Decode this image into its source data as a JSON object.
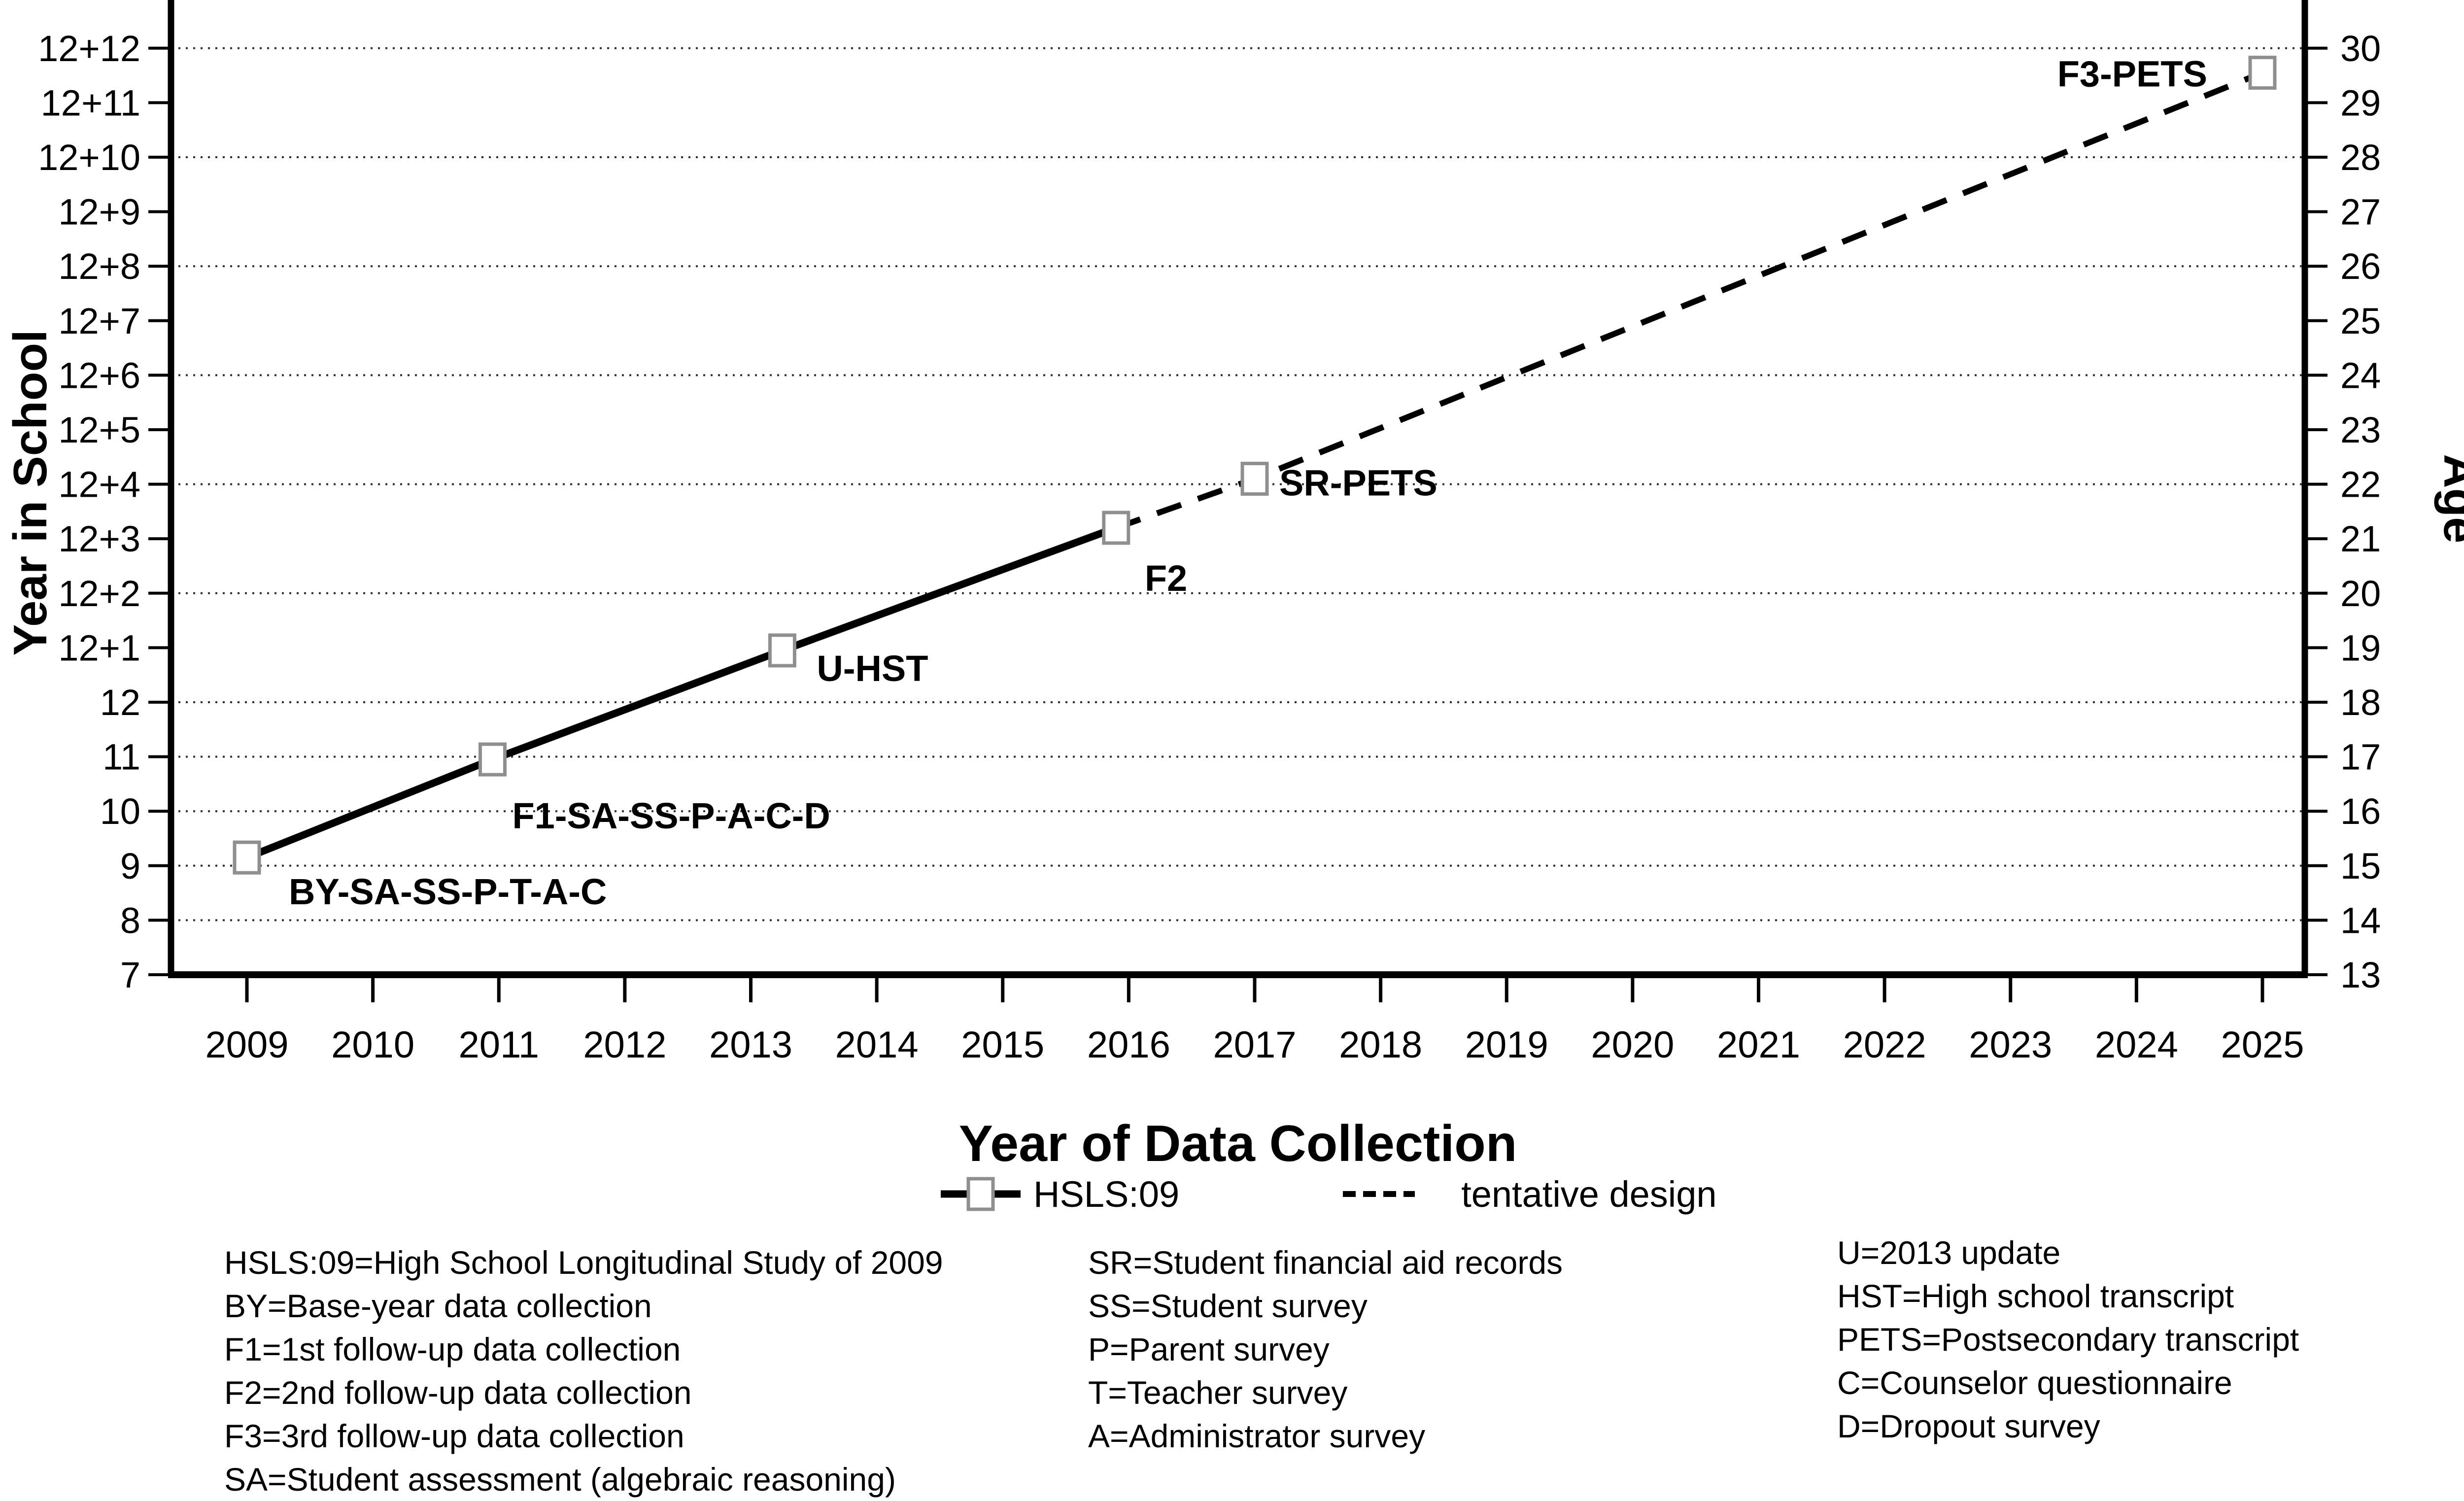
{
  "figure": {
    "background": "#ffffff",
    "text_color": "#000000",
    "marker_stroke_color": "#8f8f8f",
    "legend": {
      "hsls09": "HSLS:09",
      "tentative": "tentative design"
    },
    "footnotes": {
      "col1": [
        "HSLS:09=High School Longitudinal Study of 2009",
        "BY=Base-year data collection",
        "F1=1st follow-up data collection",
        "F2=2nd follow-up data collection",
        "F3=3rd follow-up data collection",
        "SA=Student assessment (algebraic reasoning)"
      ],
      "col2": [
        "SR=Student financial aid records",
        "SS=Student survey",
        "P=Parent survey",
        "T=Teacher survey",
        "A=Administrator survey"
      ],
      "col3": [
        "U=2013 update",
        "HST=High school transcript",
        "PETS=Postsecondary transcript",
        "C=Counselor questionnaire",
        "D=Dropout survey"
      ]
    }
  },
  "chart_data": {
    "type": "line",
    "title": "",
    "xlabel": "Year of Data Collection",
    "ylabel_left": "Year in School",
    "ylabel_right": "Age",
    "x_ticks": [
      2009,
      2010,
      2011,
      2012,
      2013,
      2014,
      2015,
      2016,
      2017,
      2018,
      2019,
      2020,
      2021,
      2022,
      2023,
      2024,
      2025
    ],
    "x_range": [
      2008.4,
      2025.35
    ],
    "y_left_tick_labels": [
      "7",
      "8",
      "9",
      "10",
      "11",
      "12",
      "12+1",
      "12+2",
      "12+3",
      "12+4",
      "12+5",
      "12+6",
      "12+7",
      "12+8",
      "12+9",
      "12+10",
      "12+11",
      "12+12"
    ],
    "y_left_tick_values": [
      7,
      8,
      9,
      10,
      11,
      12,
      13,
      14,
      15,
      16,
      17,
      18,
      19,
      20,
      21,
      22,
      23,
      24
    ],
    "y_right_tick_labels": [
      "13",
      "14",
      "15",
      "16",
      "17",
      "18",
      "19",
      "20",
      "21",
      "22",
      "23",
      "24",
      "25",
      "26",
      "27",
      "28",
      "29",
      "30"
    ],
    "y_range_school": [
      7,
      24.9
    ],
    "age_equals_school_plus": 6,
    "grid": true,
    "gridline_school_values": [
      8,
      9,
      10,
      11,
      12,
      14,
      16,
      18,
      20,
      22,
      24
    ],
    "gridline_style": "dotted",
    "legend_position": "bottom-center",
    "series": [
      {
        "name": "HSLS:09",
        "style": "solid",
        "points": [
          {
            "id": "BY",
            "year": 2009.0,
            "school": 9.15,
            "age": 15.15,
            "label": "BY-SA-SS-P-T-A-C",
            "anchor": "start",
            "label_dx": 85,
            "label_dy": 95,
            "marker": true
          },
          {
            "id": "F1",
            "year": 2010.95,
            "school": 10.95,
            "age": 16.95,
            "label": "F1-SA-SS-P-A-C-D",
            "anchor": "start",
            "label_dx": 40,
            "label_dy": 140,
            "marker": true
          },
          {
            "id": "U-HST",
            "year": 2013.25,
            "school": 12.95,
            "age": 18.95,
            "label": "U-HST",
            "anchor": "start",
            "label_dx": 70,
            "label_dy": 62,
            "marker": true
          },
          {
            "id": "F2",
            "year": 2015.9,
            "school": 15.2,
            "age": 21.2,
            "label": "F2",
            "anchor": "start",
            "label_dx": 58,
            "label_dy": 128,
            "marker": true
          }
        ]
      },
      {
        "name": "tentative design",
        "style": "dashed",
        "points": [
          {
            "id": "F2-join",
            "year": 2015.9,
            "school": 15.2,
            "age": 21.2,
            "label": "",
            "anchor": "start",
            "label_dx": 0,
            "label_dy": 0,
            "marker": false
          },
          {
            "id": "SR-PETS",
            "year": 2017.0,
            "school": 16.1,
            "age": 22.1,
            "label": "SR-PETS",
            "anchor": "start",
            "label_dx": 50,
            "label_dy": 34,
            "marker": true
          },
          {
            "id": "F3-PETS",
            "year": 2025.0,
            "school": 23.55,
            "age": 29.55,
            "label": "F3-PETS",
            "anchor": "end",
            "label_dx": -112,
            "label_dy": 28,
            "marker": true
          }
        ]
      }
    ]
  }
}
